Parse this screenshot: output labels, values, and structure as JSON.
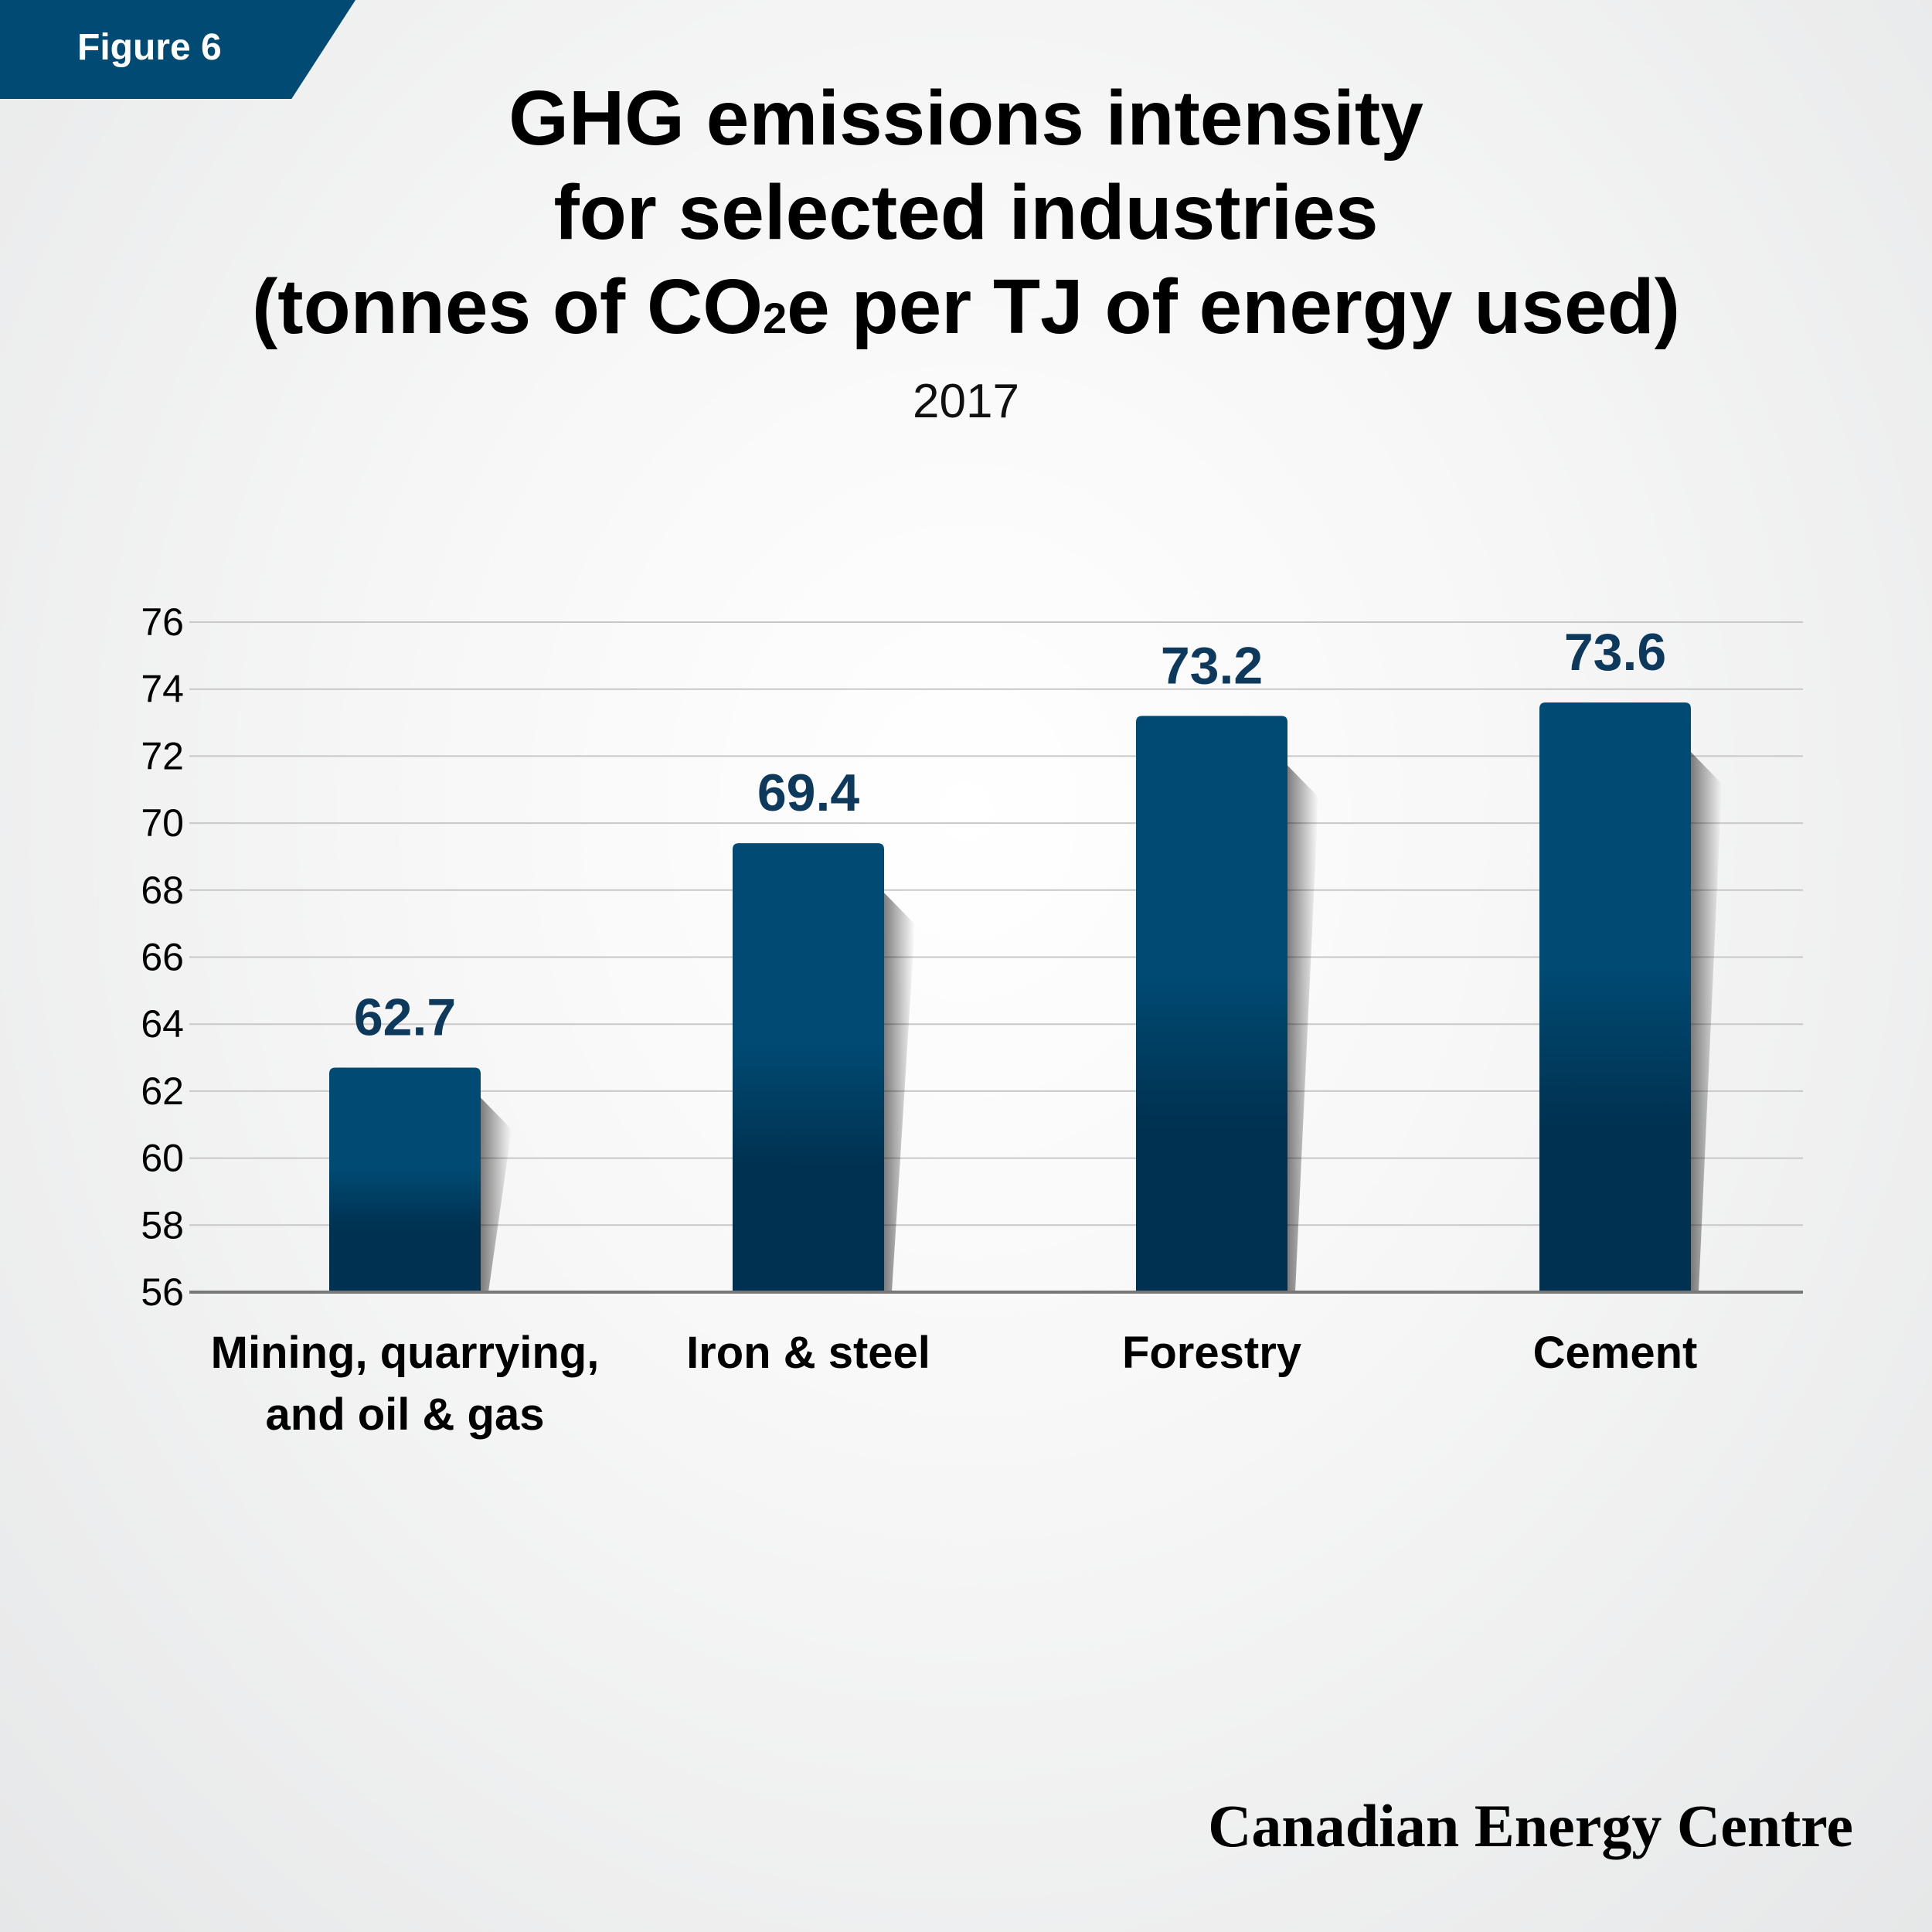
{
  "figure_label": "Figure 6",
  "title": {
    "line1": "GHG emissions intensity",
    "line2": "for selected industries",
    "line3_a": "(tonnes of CO",
    "line3_sub": "2",
    "line3_b": "e per TJ of energy used)"
  },
  "subtitle": "2017",
  "brand": "Canadian Energy Centre",
  "colors": {
    "bar_top": "#004a73",
    "bar_bottom": "#003150",
    "value_label": "#0d3a5c",
    "grid": "#c8c8c8",
    "axis": "#777777",
    "tag": "#004a73"
  },
  "chart_data": {
    "type": "bar",
    "categories": [
      [
        "Mining, quarrying,",
        "and oil & gas"
      ],
      [
        "Iron & steel"
      ],
      [
        "Forestry"
      ],
      [
        "Cement"
      ]
    ],
    "values": [
      62.7,
      69.4,
      73.2,
      73.6
    ],
    "data_labels": [
      "62.7",
      "69.4",
      "73.2",
      "73.6"
    ],
    "yticks": [
      56,
      58,
      60,
      62,
      64,
      66,
      68,
      70,
      72,
      74,
      76
    ],
    "ylim": [
      56,
      76
    ],
    "grid": true,
    "xlabel": "",
    "ylabel": ""
  }
}
